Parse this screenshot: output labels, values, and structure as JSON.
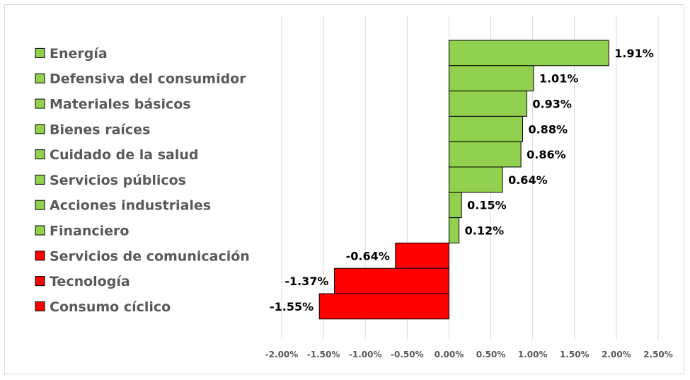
{
  "chart_data": {
    "type": "bar",
    "orientation": "horizontal",
    "categories": [
      "Energía",
      "Defensiva del consumidor",
      "Materiales básicos",
      "Bienes raíces",
      "Cuidado de la salud",
      "Servicios públicos",
      "Acciones industriales",
      "Financiero",
      "Servicios de comunicación",
      "Tecnología",
      "Consumo cíclico"
    ],
    "values": [
      1.91,
      1.01,
      0.93,
      0.88,
      0.86,
      0.64,
      0.15,
      0.12,
      -0.64,
      -1.37,
      -1.55
    ],
    "data_labels": [
      "1.91%",
      "1.01%",
      "0.93%",
      "0.88%",
      "0.86%",
      "0.64%",
      "0.15%",
      "0.12%",
      "-0.64%",
      "-1.37%",
      "-1.55%"
    ],
    "unit": "%",
    "xlim": [
      -2.0,
      2.5
    ],
    "xticks": [
      -2.0,
      -1.5,
      -1.0,
      -0.5,
      0.0,
      0.5,
      1.0,
      1.5,
      2.0,
      2.5
    ],
    "xtick_labels": [
      "-2.00%",
      "-1.50%",
      "-1.00%",
      "-0.50%",
      "0.00%",
      "0.50%",
      "1.00%",
      "1.50%",
      "2.00%",
      "2.50%"
    ],
    "colors": {
      "positive": "#92d050",
      "negative": "#ff0000",
      "border": "#000000",
      "grid": "#d9d9d9"
    },
    "grid": true,
    "legend_position": "left",
    "title": "",
    "xlabel": "",
    "ylabel": ""
  }
}
